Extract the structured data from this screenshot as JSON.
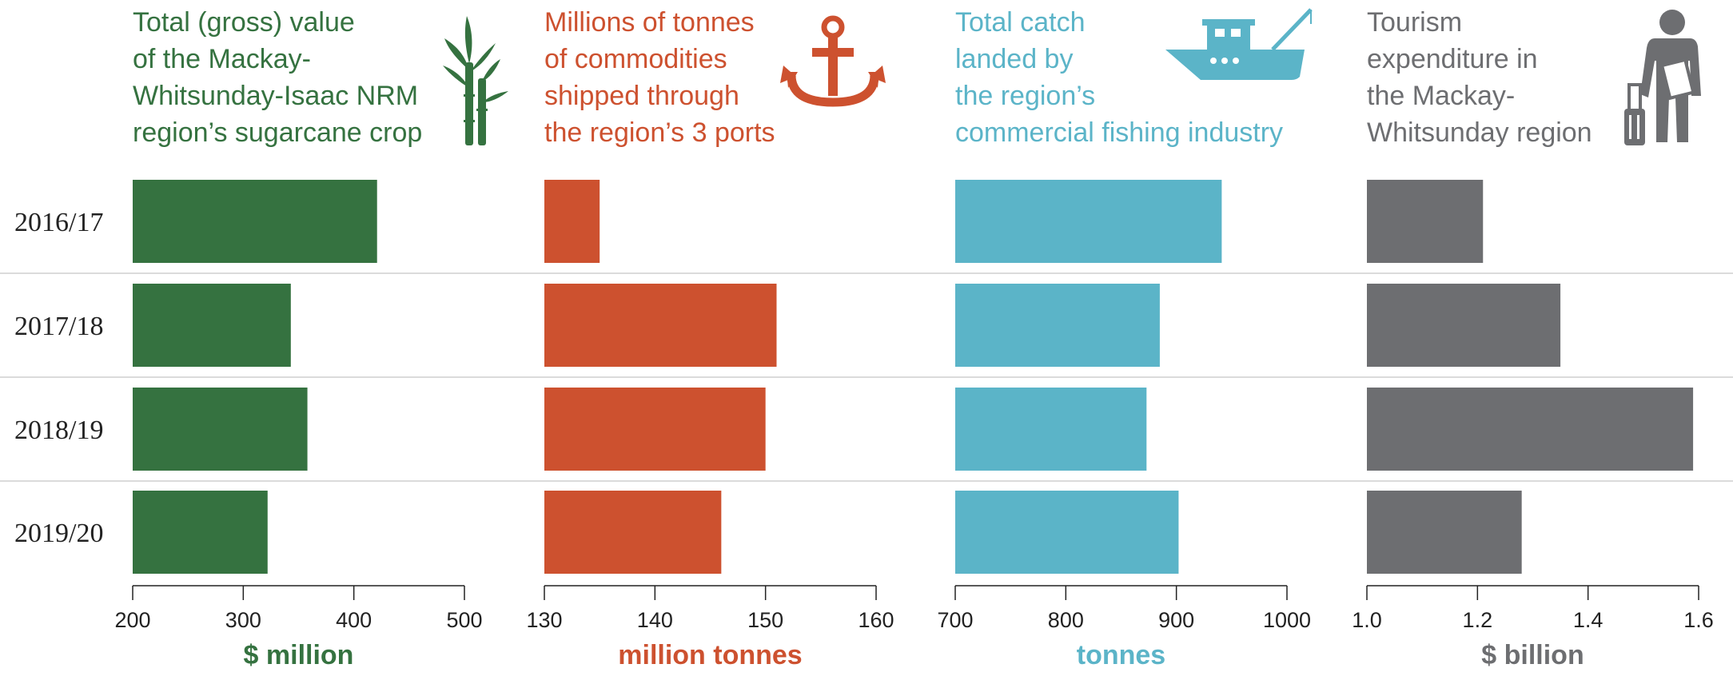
{
  "chart_data": {
    "type": "bar",
    "orientation": "horizontal",
    "categories": [
      "2016/17",
      "2017/18",
      "2018/19",
      "2019/20"
    ],
    "panels": [
      {
        "title_lines": [
          "Total (gross) value",
          "of the Mackay-",
          "Whitsunday-Isaac NRM",
          "region’s sugarcane crop"
        ],
        "unit": "$ million",
        "color": "#357240",
        "icon": "sugarcane-icon",
        "xlim": [
          200,
          500
        ],
        "ticks": [
          200,
          300,
          400,
          500
        ],
        "tick_labels": [
          "200",
          "300",
          "400",
          "500"
        ],
        "values": [
          421,
          343,
          358,
          322
        ]
      },
      {
        "title_lines": [
          "Millions of tonnes",
          "of commodities",
          "shipped through",
          "the region’s 3 ports"
        ],
        "unit": "million tonnes",
        "color": "#CD512F",
        "icon": "anchor-icon",
        "xlim": [
          130,
          160
        ],
        "ticks": [
          130,
          140,
          150,
          160
        ],
        "tick_labels": [
          "130",
          "140",
          "150",
          "160"
        ],
        "values": [
          135,
          151,
          150,
          146
        ]
      },
      {
        "title_lines": [
          "Total catch",
          "landed by",
          "the region’s",
          "commercial fishing industry"
        ],
        "unit": "tonnes",
        "color": "#5BB4C8",
        "icon": "fishing-boat-icon",
        "xlim": [
          700,
          1000
        ],
        "ticks": [
          700,
          800,
          900,
          1000
        ],
        "tick_labels": [
          "700",
          "800",
          "900",
          "1000"
        ],
        "values": [
          941,
          885,
          873,
          902
        ]
      },
      {
        "title_lines": [
          "Tourism",
          "expenditure in",
          "the Mackay-",
          "Whitsunday region"
        ],
        "unit": "$ billion",
        "color": "#6D6E71",
        "icon": "traveller-icon",
        "xlim": [
          1.0,
          1.6
        ],
        "ticks": [
          1.0,
          1.2,
          1.4,
          1.6
        ],
        "tick_labels": [
          "1.0",
          "1.2",
          "1.4",
          "1.6"
        ],
        "values": [
          1.21,
          1.35,
          1.59,
          1.28
        ]
      }
    ]
  }
}
